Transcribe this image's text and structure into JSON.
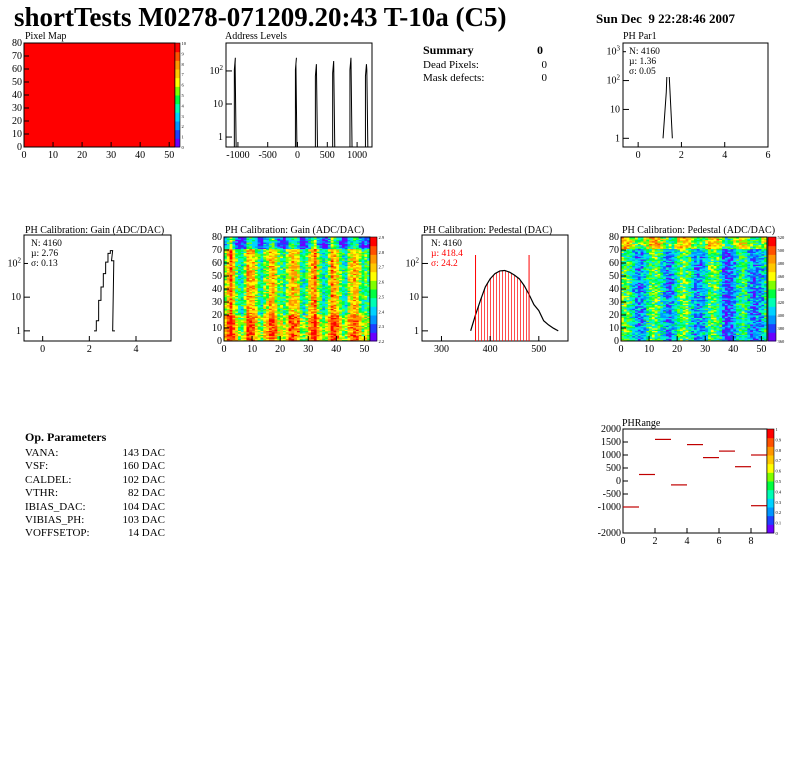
{
  "header": {
    "title": "shortTests M0278-071209.20:43 T-10a (C5)",
    "date": "Sun Dec  9 22:28:46 2007"
  },
  "summary": {
    "title": "Summary",
    "total": "0",
    "rows": [
      {
        "label": "Dead Pixels:",
        "value": "0"
      },
      {
        "label": "Mask defects:",
        "value": "0"
      }
    ]
  },
  "op_params": {
    "title": "Op. Parameters",
    "rows": [
      {
        "label": "VANA:",
        "value": "143 DAC"
      },
      {
        "label": "VSF:",
        "value": "160 DAC"
      },
      {
        "label": "CALDEL:",
        "value": "102 DAC"
      },
      {
        "label": "VTHR:",
        "value": "82 DAC"
      },
      {
        "label": "IBIAS_DAC:",
        "value": "104 DAC"
      },
      {
        "label": "VIBIAS_PH:",
        "value": "103 DAC"
      },
      {
        "label": "VOFFSETOP:",
        "value": "14 DAC"
      }
    ]
  },
  "colors": {
    "palette": [
      "#6a00ff",
      "#1e40ff",
      "#0096ff",
      "#00d2ff",
      "#00ffb4",
      "#00ff40",
      "#7fff00",
      "#ffff00",
      "#ffc800",
      "#ff9600",
      "#ff5000",
      "#ff0000"
    ],
    "red": "#ff0000",
    "black": "#000000"
  },
  "chart_data": [
    {
      "id": "pixel-map",
      "type": "heatmap",
      "title": "Pixel Map",
      "xlim": [
        0,
        52
      ],
      "ylim": [
        0,
        80
      ],
      "x_ticks": [
        "0",
        "10",
        "20",
        "30",
        "40",
        "50"
      ],
      "y_ticks": [
        "0",
        "10",
        "20",
        "30",
        "40",
        "50",
        "60",
        "70",
        "80"
      ],
      "cell_value": 10,
      "z_ticks": [
        "0",
        "1",
        "2",
        "3",
        "4",
        "5",
        "6",
        "7",
        "8",
        "9",
        "10"
      ]
    },
    {
      "id": "address-levels",
      "type": "line",
      "title": "Address Levels",
      "xlim": [
        -1200,
        1250
      ],
      "log_y": true,
      "x_ticks": [
        "-1000",
        "-500",
        "0",
        "500",
        "1000"
      ],
      "y_ticks": [
        "1",
        "10",
        "10^2"
      ],
      "peaks": [
        {
          "x": [
            -1060,
            -1030
          ],
          "y": [
            1,
            250
          ]
        },
        {
          "x": [
            -35,
            -10
          ],
          "y": [
            1,
            250
          ]
        },
        {
          "x": [
            300,
            335
          ],
          "y": [
            1,
            160
          ]
        },
        {
          "x": [
            590,
            625
          ],
          "y": [
            1,
            200
          ]
        },
        {
          "x": [
            880,
            915
          ],
          "y": [
            1,
            250
          ]
        },
        {
          "x": [
            1140,
            1180
          ],
          "y": [
            1,
            160
          ]
        }
      ]
    },
    {
      "id": "ph-par1",
      "type": "line",
      "title": "PH Par1",
      "xlim": [
        -0.7,
        6
      ],
      "log_y": true,
      "x_ticks": [
        "0",
        "2",
        "4",
        "6"
      ],
      "y_ticks": [
        "1",
        "10",
        "10^2",
        "10^3"
      ],
      "stats": {
        "n": "N: 4160",
        "mu": "µ: 1.36",
        "sigma": "σ: 0.05"
      },
      "peak": {
        "x": [
          1.15,
          1.3,
          1.36,
          1.42,
          1.58
        ],
        "y": [
          1,
          40,
          700,
          250,
          1
        ]
      }
    },
    {
      "id": "gain-1d",
      "type": "line",
      "title": "PH Calibration: Gain (ADC/DAC)",
      "xlim": [
        -0.8,
        5.5
      ],
      "log_y": true,
      "x_ticks": [
        "0",
        "2",
        "4"
      ],
      "y_ticks": [
        "1",
        "10",
        "10^2"
      ],
      "stats": {
        "n": "N: 4160",
        "mu": "µ: 2.76",
        "sigma": "σ: 0.13"
      },
      "curve": {
        "x": [
          2.2,
          2.3,
          2.4,
          2.5,
          2.6,
          2.7,
          2.8,
          2.9,
          2.95,
          3.0
        ],
        "y": [
          1,
          2,
          8,
          20,
          50,
          110,
          200,
          240,
          120,
          1
        ]
      }
    },
    {
      "id": "gain-map",
      "type": "heatmap",
      "title": "PH Calibration: Gain (ADC/DAC)",
      "xlim": [
        0,
        52
      ],
      "ylim": [
        0,
        80
      ],
      "x_ticks": [
        "0",
        "10",
        "20",
        "30",
        "40",
        "50"
      ],
      "y_ticks": [
        "0",
        "10",
        "20",
        "30",
        "40",
        "50",
        "60",
        "70",
        "80"
      ],
      "z_ticks": [
        "2.2",
        "2.3",
        "2.4",
        "2.5",
        "2.6",
        "2.7",
        "2.8",
        "2.9"
      ]
    },
    {
      "id": "pedestal-1d",
      "type": "line",
      "title": "PH Calibration: Pedestal (DAC)",
      "xlim": [
        260,
        560
      ],
      "log_y": true,
      "x_ticks": [
        "300",
        "400",
        "500"
      ],
      "y_ticks": [
        "1",
        "10",
        "10^2"
      ],
      "stats": {
        "n": "N: 4160",
        "mu": "µ: 418.4",
        "sigma": "σ: 24.2"
      },
      "curve": {
        "x": [
          360,
          370,
          380,
          390,
          400,
          410,
          420,
          430,
          440,
          450,
          460,
          470,
          480,
          490,
          500,
          510,
          520,
          530,
          540
        ],
        "y": [
          1,
          3,
          8,
          20,
          35,
          50,
          60,
          62,
          55,
          45,
          35,
          22,
          12,
          6,
          4,
          2,
          1.5,
          1.2,
          1
        ]
      },
      "cut_lines": [
        370,
        480
      ]
    },
    {
      "id": "pedestal-map",
      "type": "heatmap",
      "title": "PH Calibration: Pedestal (ADC/DAC)",
      "xlim": [
        0,
        52
      ],
      "ylim": [
        0,
        80
      ],
      "x_ticks": [
        "0",
        "10",
        "20",
        "30",
        "40",
        "50"
      ],
      "y_ticks": [
        "0",
        "10",
        "20",
        "30",
        "40",
        "50",
        "60",
        "70",
        "80"
      ],
      "z_ticks": [
        "360",
        "380",
        "400",
        "420",
        "440",
        "460",
        "480",
        "500",
        "520"
      ]
    },
    {
      "id": "ph-range",
      "type": "scatter",
      "title": "PHRange",
      "xlim": [
        0,
        9
      ],
      "ylim": [
        -2000,
        2000
      ],
      "x_ticks": [
        "0",
        "2",
        "4",
        "6",
        "8"
      ],
      "y_ticks": [
        "-2000",
        "-1000",
        "-500",
        "0",
        "500",
        "1000",
        "1500",
        "2000"
      ],
      "y_tick_values": [
        -2000,
        -1000,
        -500,
        0,
        500,
        1000,
        1500,
        2000
      ],
      "z_ticks": [
        "0",
        "0.1",
        "0.2",
        "0.3",
        "0.4",
        "0.5",
        "0.6",
        "0.7",
        "0.8",
        "0.9",
        "1"
      ],
      "points": [
        {
          "x": 0,
          "y": -1000
        },
        {
          "x": 1,
          "y": 250
        },
        {
          "x": 2,
          "y": 1600
        },
        {
          "x": 3,
          "y": -150
        },
        {
          "x": 4,
          "y": 1400
        },
        {
          "x": 5,
          "y": 900
        },
        {
          "x": 6,
          "y": 1150
        },
        {
          "x": 7,
          "y": 550
        },
        {
          "x": 8,
          "y": 1000
        },
        {
          "x": 8,
          "y": -950
        }
      ]
    }
  ]
}
